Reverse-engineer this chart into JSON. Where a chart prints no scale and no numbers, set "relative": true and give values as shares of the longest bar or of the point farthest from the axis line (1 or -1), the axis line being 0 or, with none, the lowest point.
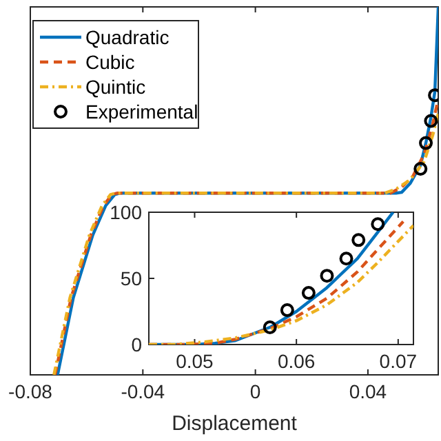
{
  "chart_data": [
    {
      "type": "line",
      "xlabel": "Displacement",
      "relative": true,
      "xlim": [
        -0.08,
        0.065
      ],
      "xticks": [
        -0.08,
        -0.04,
        0,
        0.04
      ],
      "legend": "top left",
      "series": [
        {
          "name": "Quadratic",
          "color": "#0072bd",
          "line_style": "solid",
          "x": [
            -0.0703,
            -0.0647,
            -0.0578,
            -0.0532,
            -0.05,
            -0.048,
            0.05,
            0.052,
            0.055,
            0.0587,
            0.0606,
            0.0624,
            0.0638,
            0.065
          ],
          "values": [
            0,
            0.21,
            0.38,
            0.46,
            0.49,
            0.494,
            0.494,
            0.496,
            0.52,
            0.57,
            0.63,
            0.7,
            0.77,
            1
          ]
        },
        {
          "name": "Cubic",
          "color": "#d95319",
          "line_style": "dashed",
          "x": [
            -0.0712,
            -0.0655,
            -0.0585,
            -0.054,
            -0.051,
            -0.049,
            0.048,
            0.052,
            0.056,
            0.06,
            0.063,
            0.065
          ],
          "values": [
            0,
            0.21,
            0.38,
            0.46,
            0.49,
            0.494,
            0.494,
            0.51,
            0.54,
            0.6,
            0.68,
            0.75
          ]
        },
        {
          "name": "Quintic",
          "color": "#edb120",
          "line_style": "dotted",
          "x": [
            -0.0716,
            -0.0659,
            -0.059,
            -0.0545,
            -0.0515,
            -0.0495,
            0.046,
            0.05,
            0.055,
            0.06,
            0.063,
            0.065
          ],
          "values": [
            0,
            0.21,
            0.38,
            0.46,
            0.49,
            0.494,
            0.494,
            0.505,
            0.53,
            0.58,
            0.65,
            0.71
          ]
        },
        {
          "name": "Experimental",
          "type": "scatter",
          "marker": "circle",
          "color": "#000000",
          "x": [
            0.0587,
            0.0606,
            0.0624,
            0.0638
          ],
          "values": [
            0.56,
            0.63,
            0.69,
            0.76
          ]
        }
      ]
    },
    {
      "type": "line",
      "xlim": [
        0.0455,
        0.0715
      ],
      "xticks": [
        0.05,
        0.06,
        0.07
      ],
      "ylim": [
        0,
        100
      ],
      "yticks": [
        0,
        50,
        100
      ],
      "series": [
        {
          "color": "#0072bd",
          "line_style": "solid",
          "x": [
            0.0455,
            0.05,
            0.052,
            0.054,
            0.0574,
            0.06,
            0.063,
            0.066,
            0.068,
            0.0695
          ],
          "values": [
            0,
            0,
            1,
            3,
            13,
            25,
            43,
            65,
            85,
            100
          ]
        },
        {
          "color": "#d95319",
          "line_style": "dashed",
          "x": [
            0.0455,
            0.049,
            0.052,
            0.054,
            0.0574,
            0.06,
            0.063,
            0.066,
            0.068,
            0.0705
          ],
          "values": [
            0,
            0,
            1,
            4,
            12,
            21,
            35,
            55,
            72,
            93
          ]
        },
        {
          "color": "#edb120",
          "line_style": "dotted",
          "x": [
            0.0455,
            0.048,
            0.051,
            0.054,
            0.0574,
            0.06,
            0.063,
            0.066,
            0.068,
            0.0715
          ],
          "values": [
            0,
            0,
            2,
            5,
            11,
            18,
            30,
            47,
            62,
            90
          ]
        },
        {
          "type": "scatter",
          "marker": "circle",
          "color": "#000000",
          "x": [
            0.0574,
            0.0591,
            0.0612,
            0.063,
            0.0649,
            0.0661,
            0.068
          ],
          "values": [
            13,
            26,
            39,
            52,
            65,
            79,
            91
          ]
        }
      ]
    }
  ]
}
